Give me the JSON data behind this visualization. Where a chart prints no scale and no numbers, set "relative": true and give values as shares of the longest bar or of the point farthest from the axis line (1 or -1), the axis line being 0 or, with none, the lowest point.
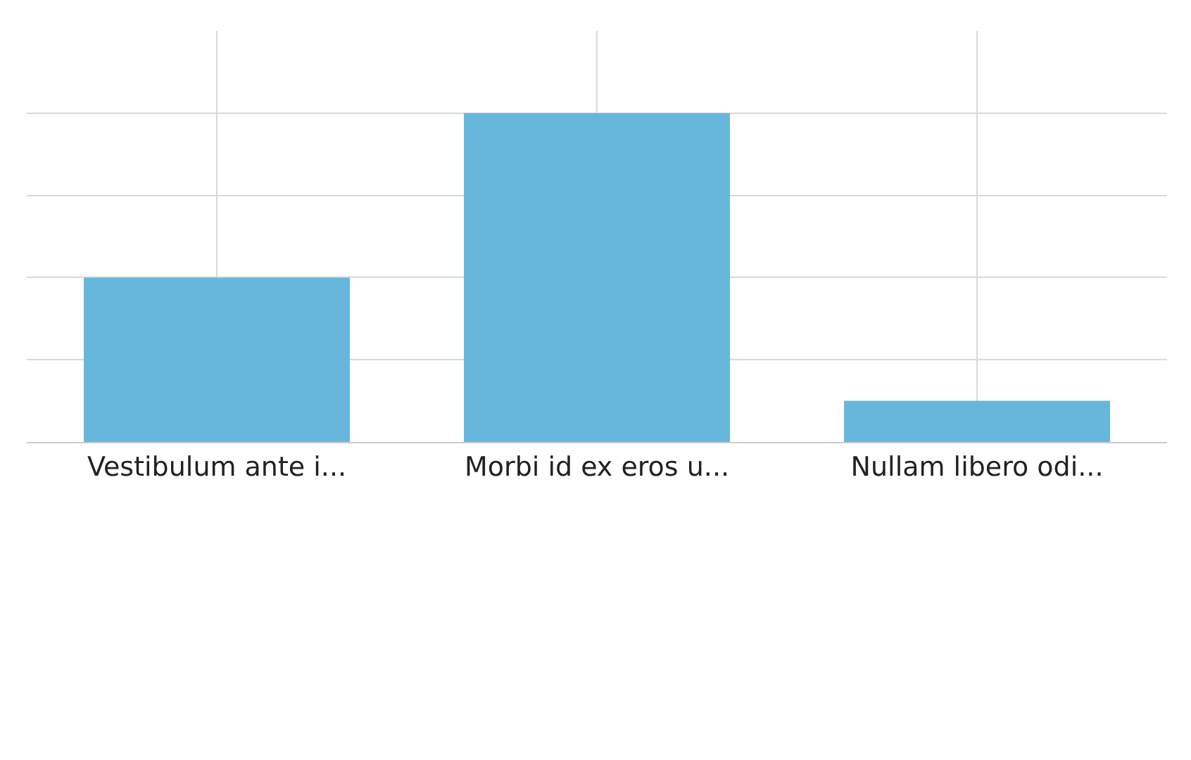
{
  "chart_data": {
    "type": "bar",
    "relative": true,
    "categories": [
      "Vestibulum ante i...",
      "Morbi id ex eros u...",
      "Nullam libero odi..."
    ],
    "values": [
      0.5,
      1,
      0.125
    ],
    "color": "#67b7dc",
    "grid": true
  }
}
